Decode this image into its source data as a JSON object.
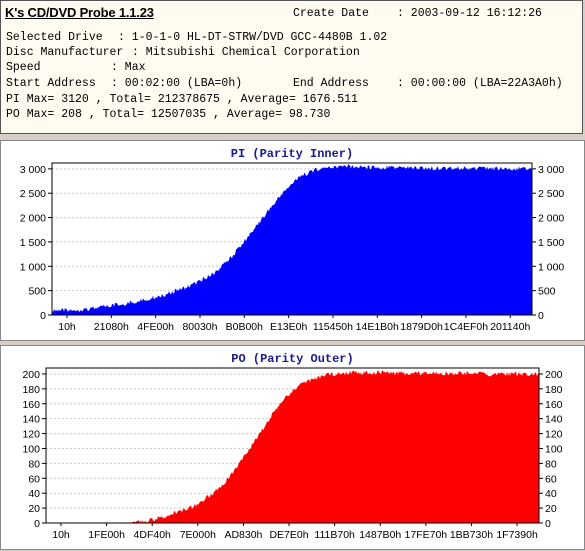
{
  "header": {
    "app_title": "K's CD/DVD Probe 1.1.23",
    "create_date_label": "Create Date",
    "create_date_value": ": 2003-09-12 16:12:26",
    "selected_drive_label": "Selected Drive",
    "selected_drive_value": ": 1-0-1-0 HL-DT-STRW/DVD GCC-4480B 1.02",
    "disc_manufacturer_label": "Disc Manufacturer",
    "disc_manufacturer_value": ": Mitsubishi Chemical Corporation",
    "speed_label": "Speed",
    "speed_value": ": Max",
    "start_address_label": "Start Address",
    "start_address_value": ": 00:02:00 (LBA=0h)",
    "end_address_label": "End Address",
    "end_address_value": ": 00:00:00 (LBA=22A3A0h)",
    "pi_summary": "PI Max= 3120 , Total= 212378675 , Average= 1676.511",
    "po_summary": "PO Max= 208 , Total= 12507035 , Average= 98.730"
  },
  "chart_data": [
    {
      "type": "area",
      "title": "PI (Parity Inner)",
      "color": "#0000ff",
      "ylim": [
        0,
        3120
      ],
      "y_ticks": [
        0,
        500,
        1000,
        1500,
        2000,
        2500,
        3000
      ],
      "y_tick_labels": [
        "0",
        "500",
        "1 000",
        "1 500",
        "2 000",
        "2 500",
        "3 000"
      ],
      "x_tick_labels": [
        "10h",
        "21080h",
        "4FE00h",
        "80030h",
        "B0B00h",
        "E13E0h",
        "115450h",
        "14E1B0h",
        "1879D0h",
        "1C4EF0h",
        "201140h"
      ],
      "grid": true,
      "x": [
        0,
        2,
        4,
        6,
        8,
        10,
        12,
        14,
        16,
        18,
        20,
        22,
        24,
        26,
        28,
        30,
        32,
        34,
        36,
        38,
        40,
        42,
        44,
        46,
        48,
        50,
        52,
        54,
        56,
        58,
        60,
        62,
        64,
        66,
        68,
        70,
        72,
        74,
        76,
        78,
        80,
        82,
        84,
        86,
        88,
        90,
        92,
        94,
        96,
        98,
        100
      ],
      "values": [
        130,
        140,
        150,
        160,
        180,
        200,
        230,
        260,
        290,
        330,
        380,
        430,
        480,
        550,
        620,
        700,
        800,
        920,
        1100,
        1300,
        1550,
        1800,
        2050,
        2300,
        2550,
        2750,
        2900,
        3000,
        3050,
        3080,
        3090,
        3090,
        3080,
        3080,
        3070,
        3070,
        3070,
        3070,
        3060,
        3060,
        3060,
        3060,
        3060,
        3060,
        3060,
        3050,
        3050,
        3050,
        3050,
        3050,
        3050
      ]
    },
    {
      "type": "area",
      "title": "PO (Parity Outer)",
      "color": "#ff0000",
      "ylim": [
        0,
        208
      ],
      "y_ticks": [
        0,
        20,
        40,
        60,
        80,
        100,
        120,
        140,
        160,
        180,
        200
      ],
      "y_tick_labels": [
        "0",
        "20",
        "40",
        "60",
        "80",
        "100",
        "120",
        "140",
        "160",
        "180",
        "200"
      ],
      "x_tick_labels": [
        "10h",
        "1FE00h",
        "4DF40h",
        "7E000h",
        "AD830h",
        "DE7E0h",
        "111B70h",
        "1487B0h",
        "17FE70h",
        "1BB730h",
        "1F7390h"
      ],
      "grid": true,
      "x": [
        0,
        2,
        4,
        6,
        8,
        10,
        12,
        14,
        16,
        18,
        20,
        22,
        24,
        26,
        28,
        30,
        32,
        34,
        36,
        38,
        40,
        42,
        44,
        46,
        48,
        50,
        52,
        54,
        56,
        58,
        60,
        62,
        64,
        66,
        68,
        70,
        72,
        74,
        76,
        78,
        80,
        82,
        84,
        86,
        88,
        90,
        92,
        94,
        96,
        98,
        100
      ],
      "values": [
        0,
        0,
        0,
        0,
        0,
        1,
        1,
        1,
        2,
        3,
        5,
        8,
        12,
        16,
        20,
        26,
        34,
        44,
        56,
        72,
        90,
        110,
        130,
        150,
        168,
        180,
        190,
        196,
        200,
        203,
        204,
        205,
        205,
        205,
        205,
        204,
        204,
        204,
        204,
        204,
        204,
        204,
        204,
        204,
        204,
        203,
        203,
        203,
        203,
        203,
        203
      ]
    }
  ]
}
